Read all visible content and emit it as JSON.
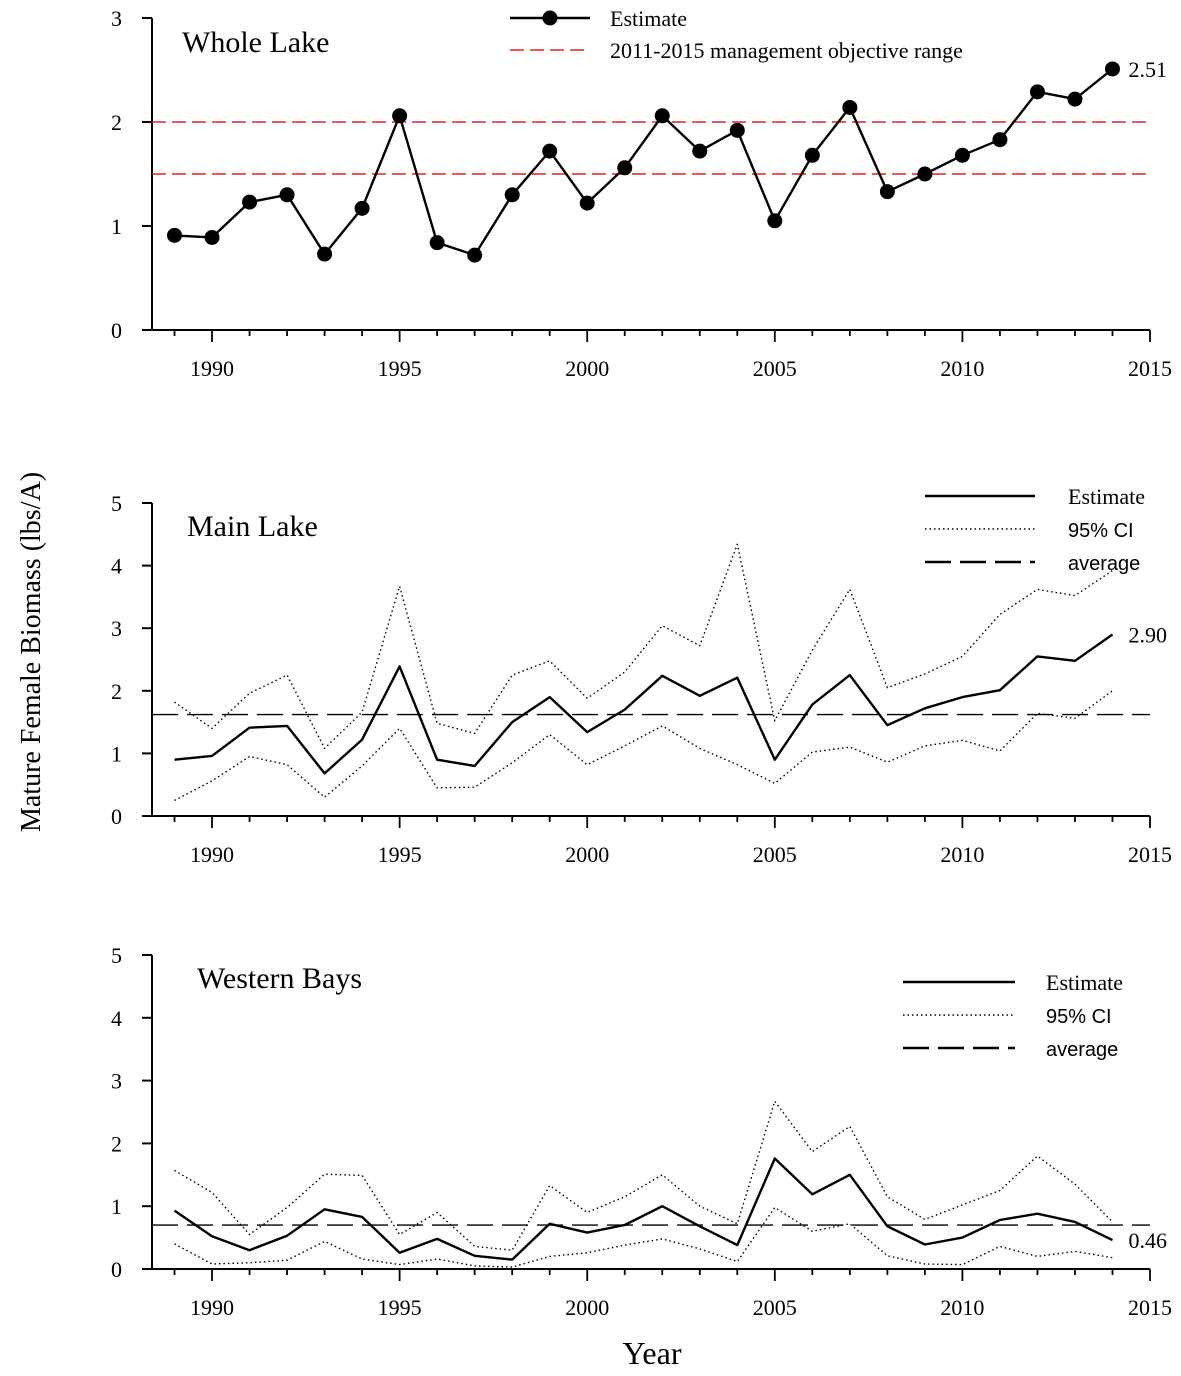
{
  "figure": {
    "ylabel": "Mature Female Biomass (lbs/A)",
    "xlabel": "Year"
  },
  "chart_data": [
    {
      "type": "line",
      "panel_title": "Whole Lake",
      "xlabel": "",
      "ylabel": "",
      "xlim": [
        1988.4,
        2015
      ],
      "ylim": [
        0,
        3
      ],
      "xticks": [
        1990,
        1995,
        2000,
        2005,
        2010,
        2015
      ],
      "yticks": [
        0,
        1,
        2,
        3
      ],
      "x": [
        1989,
        1990,
        1991,
        1992,
        1993,
        1994,
        1995,
        1996,
        1997,
        1998,
        1999,
        2000,
        2001,
        2002,
        2003,
        2004,
        2005,
        2006,
        2007,
        2008,
        2009,
        2010,
        2011,
        2012,
        2013,
        2014
      ],
      "series": [
        {
          "name": "Estimate",
          "style": "solid-markers",
          "color": "#000000",
          "values": [
            0.91,
            0.89,
            1.23,
            1.3,
            0.73,
            1.17,
            2.06,
            0.84,
            0.72,
            1.3,
            1.72,
            1.22,
            1.56,
            2.06,
            1.72,
            1.92,
            1.05,
            1.68,
            2.14,
            1.33,
            1.5,
            1.68,
            1.83,
            2.29,
            2.22,
            2.51
          ]
        }
      ],
      "reference_lines": [
        {
          "name": "2011-2015 management objective range",
          "values": [
            1.5,
            2.0
          ],
          "color": "#e02020",
          "style": "dashed"
        }
      ],
      "legend": [
        {
          "label": "Estimate",
          "kind": "solid-markers",
          "color": "#000000"
        },
        {
          "label": "2011-2015 management objective range",
          "kind": "dashed",
          "color": "#e02020"
        }
      ],
      "legend_position": "top-center",
      "end_label": "2.51"
    },
    {
      "type": "line",
      "panel_title": "Main Lake",
      "xlabel": "",
      "ylabel": "",
      "xlim": [
        1988.4,
        2015
      ],
      "ylim": [
        0,
        5
      ],
      "xticks": [
        1990,
        1995,
        2000,
        2005,
        2010,
        2015
      ],
      "yticks": [
        0,
        1,
        2,
        3,
        4,
        5
      ],
      "x": [
        1989,
        1990,
        1991,
        1992,
        1993,
        1994,
        1995,
        1996,
        1997,
        1998,
        1999,
        2000,
        2001,
        2002,
        2003,
        2004,
        2005,
        2006,
        2007,
        2008,
        2009,
        2010,
        2011,
        2012,
        2013,
        2014
      ],
      "series": [
        {
          "name": "Estimate",
          "style": "solid",
          "color": "#000000",
          "values": [
            0.9,
            0.96,
            1.41,
            1.44,
            0.68,
            1.22,
            2.39,
            0.9,
            0.8,
            1.5,
            1.9,
            1.34,
            1.7,
            2.24,
            1.92,
            2.21,
            0.9,
            1.78,
            2.25,
            1.45,
            1.72,
            1.9,
            2.01,
            2.55,
            2.48,
            2.9
          ]
        },
        {
          "name": "95% CI",
          "style": "dotted",
          "color": "#000000",
          "values": [
            1.82,
            1.4,
            1.96,
            2.25,
            1.08,
            1.66,
            3.67,
            1.48,
            1.32,
            2.25,
            2.48,
            1.88,
            2.3,
            3.04,
            2.72,
            4.34,
            1.52,
            2.65,
            3.62,
            2.05,
            2.27,
            2.55,
            3.22,
            3.62,
            3.52,
            3.92
          ]
        },
        {
          "name": "95% CI",
          "style": "dotted",
          "color": "#000000",
          "values": [
            0.25,
            0.56,
            0.95,
            0.82,
            0.3,
            0.8,
            1.4,
            0.45,
            0.46,
            0.85,
            1.3,
            0.82,
            1.12,
            1.44,
            1.08,
            0.82,
            0.52,
            1.02,
            1.1,
            0.86,
            1.12,
            1.21,
            1.04,
            1.64,
            1.56,
            2.0
          ]
        }
      ],
      "reference_lines": [
        {
          "name": "average",
          "values": [
            1.62
          ],
          "color": "#000000",
          "style": "long-dash"
        }
      ],
      "legend": [
        {
          "label": "Estimate",
          "kind": "solid",
          "color": "#000000"
        },
        {
          "label": "95% CI",
          "kind": "dotted",
          "color": "#000000"
        },
        {
          "label": "average",
          "kind": "long-dash",
          "color": "#000000"
        }
      ],
      "legend_position": "top-right",
      "end_label": "2.90"
    },
    {
      "type": "line",
      "panel_title": "Western Bays",
      "xlabel": "",
      "ylabel": "",
      "xlim": [
        1988.4,
        2015
      ],
      "ylim": [
        0,
        5
      ],
      "xticks": [
        1990,
        1995,
        2000,
        2005,
        2010,
        2015
      ],
      "yticks": [
        0,
        1,
        2,
        3,
        4,
        5
      ],
      "x": [
        1989,
        1990,
        1991,
        1992,
        1993,
        1994,
        1995,
        1996,
        1997,
        1998,
        1999,
        2000,
        2001,
        2002,
        2003,
        2004,
        2005,
        2006,
        2007,
        2008,
        2009,
        2010,
        2011,
        2012,
        2013,
        2014
      ],
      "series": [
        {
          "name": "Estimate",
          "style": "solid",
          "color": "#000000",
          "values": [
            0.93,
            0.52,
            0.3,
            0.53,
            0.95,
            0.83,
            0.26,
            0.48,
            0.21,
            0.15,
            0.72,
            0.58,
            0.7,
            1.0,
            0.68,
            0.38,
            1.76,
            1.19,
            1.5,
            0.68,
            0.39,
            0.5,
            0.78,
            0.88,
            0.75,
            0.46
          ]
        },
        {
          "name": "95% CI",
          "style": "dotted",
          "color": "#000000",
          "values": [
            1.57,
            1.22,
            0.55,
            0.98,
            1.51,
            1.49,
            0.55,
            0.9,
            0.36,
            0.3,
            1.33,
            0.9,
            1.15,
            1.5,
            1.0,
            0.72,
            2.67,
            1.87,
            2.27,
            1.15,
            0.79,
            1.02,
            1.25,
            1.8,
            1.35,
            0.75
          ]
        },
        {
          "name": "95% CI",
          "style": "dotted",
          "color": "#000000",
          "values": [
            0.4,
            0.08,
            0.1,
            0.14,
            0.44,
            0.16,
            0.07,
            0.16,
            0.05,
            0.03,
            0.2,
            0.26,
            0.38,
            0.48,
            0.32,
            0.12,
            0.98,
            0.6,
            0.72,
            0.21,
            0.08,
            0.07,
            0.36,
            0.2,
            0.28,
            0.18
          ]
        }
      ],
      "reference_lines": [
        {
          "name": "average",
          "values": [
            0.7
          ],
          "color": "#000000",
          "style": "long-dash"
        }
      ],
      "legend": [
        {
          "label": "Estimate",
          "kind": "solid",
          "color": "#000000"
        },
        {
          "label": "95% CI",
          "kind": "dotted",
          "color": "#000000"
        },
        {
          "label": "average",
          "kind": "long-dash",
          "color": "#000000"
        }
      ],
      "legend_position": "top-right",
      "end_label": "0.46"
    }
  ]
}
